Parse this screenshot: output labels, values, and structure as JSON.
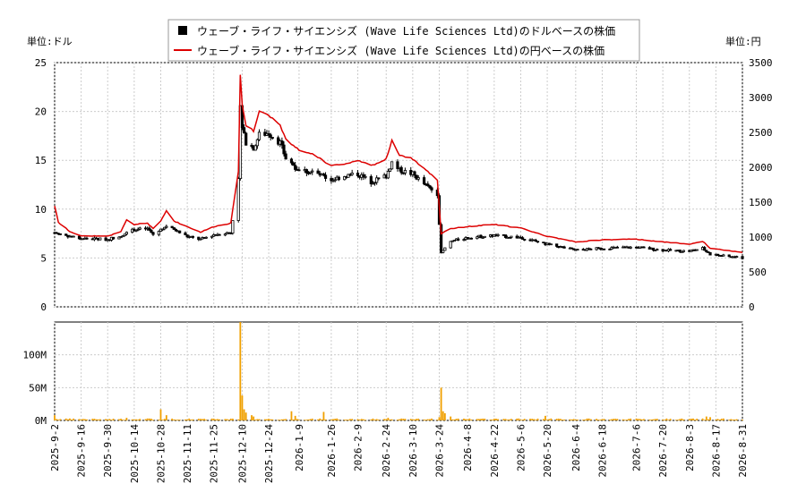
{
  "chart_data": {
    "type": "candlestick+line+bar",
    "legend": {
      "items": [
        {
          "label": "ウェーブ・ライフ・サイエンシズ (Wave Life Sciences Ltd)のドルベースの株価",
          "color": "#000000",
          "marker": "square"
        },
        {
          "label": "ウェーブ・ライフ・サイエンシズ (Wave Life Sciences Ltd)の円ベースの株価",
          "color": "#dd0000",
          "marker": "line"
        }
      ]
    },
    "left_unit": "単位:ドル",
    "right_unit": "単位:円",
    "price_axis_left": {
      "min": 0,
      "max": 25,
      "ticks": [
        0,
        5,
        10,
        15,
        20,
        25
      ]
    },
    "price_axis_right": {
      "min": 0,
      "max": 3500,
      "ticks": [
        0,
        500,
        1000,
        1500,
        2000,
        2500,
        3000,
        3500
      ]
    },
    "volume_axis": {
      "min": 0,
      "max": 150000000,
      "ticks": [
        {
          "value": 0,
          "label": "0M"
        },
        {
          "value": 50000000,
          "label": "50M"
        },
        {
          "value": 100000000,
          "label": "100M"
        }
      ]
    },
    "x_start": "2025-09-02",
    "x_end": "2026-08-31",
    "x_ticks": [
      "2025-9-2",
      "2025-9-16",
      "2025-9-30",
      "2025-10-14",
      "2025-10-28",
      "2025-11-11",
      "2025-11-25",
      "2025-12-10",
      "2025-12-24",
      "2026-1-9",
      "2026-1-26",
      "2026-2-9",
      "2026-2-24",
      "2026-3-10",
      "2026-3-24",
      "2026-4-8",
      "2026-4-22",
      "2026-5-6",
      "2026-5-20",
      "2026-6-4",
      "2026-6-18",
      "2026-7-6",
      "2026-7-20",
      "2026-8-3",
      "2026-8-17",
      "2026-8-31"
    ],
    "usd_anchors": [
      [
        "2025-09-02",
        7.6
      ],
      [
        "2025-09-08",
        7.3
      ],
      [
        "2025-09-16",
        7.0
      ],
      [
        "2025-09-30",
        6.9
      ],
      [
        "2025-10-07",
        7.3
      ],
      [
        "2025-10-14",
        7.9
      ],
      [
        "2025-10-21",
        8.0
      ],
      [
        "2025-10-24",
        7.4
      ],
      [
        "2025-10-28",
        7.9
      ],
      [
        "2025-10-31",
        8.3
      ],
      [
        "2025-11-04",
        7.9
      ],
      [
        "2025-11-11",
        7.2
      ],
      [
        "2025-11-18",
        6.9
      ],
      [
        "2025-11-25",
        7.4
      ],
      [
        "2025-12-04",
        7.6
      ],
      [
        "2025-12-08",
        13.0
      ],
      [
        "2025-12-09",
        20.5
      ],
      [
        "2025-12-10",
        18.5
      ],
      [
        "2025-12-12",
        16.8
      ],
      [
        "2025-12-16",
        16.3
      ],
      [
        "2025-12-19",
        17.6
      ],
      [
        "2025-12-24",
        17.8
      ],
      [
        "2025-12-30",
        16.8
      ],
      [
        "2026-01-02",
        15.2
      ],
      [
        "2026-01-09",
        14.0
      ],
      [
        "2026-01-16",
        13.8
      ],
      [
        "2026-01-26",
        13.0
      ],
      [
        "2026-02-02",
        13.4
      ],
      [
        "2026-02-09",
        13.6
      ],
      [
        "2026-02-16",
        12.8
      ],
      [
        "2026-02-24",
        13.4
      ],
      [
        "2026-02-27",
        14.8
      ],
      [
        "2026-03-03",
        14.0
      ],
      [
        "2026-03-10",
        13.6
      ],
      [
        "2026-03-17",
        12.4
      ],
      [
        "2026-03-23",
        11.6
      ],
      [
        "2026-03-25",
        5.6
      ],
      [
        "2026-03-30",
        6.7
      ],
      [
        "2026-04-08",
        7.1
      ],
      [
        "2026-04-22",
        7.3
      ],
      [
        "2026-05-06",
        7.1
      ],
      [
        "2026-05-20",
        6.4
      ],
      [
        "2026-06-04",
        5.8
      ],
      [
        "2026-06-18",
        6.0
      ],
      [
        "2026-07-06",
        6.1
      ],
      [
        "2026-07-20",
        5.8
      ],
      [
        "2026-08-03",
        5.7
      ],
      [
        "2026-08-10",
        6.0
      ],
      [
        "2026-08-14",
        5.3
      ],
      [
        "2026-08-17",
        5.3
      ],
      [
        "2026-08-31",
        5.0
      ]
    ],
    "jpy_anchors": [
      [
        "2025-09-02",
        1450
      ],
      [
        "2025-09-04",
        1210
      ],
      [
        "2025-09-10",
        1080
      ],
      [
        "2025-09-16",
        1020
      ],
      [
        "2025-09-30",
        1010
      ],
      [
        "2025-10-07",
        1080
      ],
      [
        "2025-10-10",
        1250
      ],
      [
        "2025-10-14",
        1180
      ],
      [
        "2025-10-21",
        1200
      ],
      [
        "2025-10-24",
        1120
      ],
      [
        "2025-10-28",
        1230
      ],
      [
        "2025-10-31",
        1380
      ],
      [
        "2025-11-04",
        1230
      ],
      [
        "2025-11-11",
        1150
      ],
      [
        "2025-11-18",
        1070
      ],
      [
        "2025-11-25",
        1150
      ],
      [
        "2025-12-04",
        1200
      ],
      [
        "2025-12-08",
        1950
      ],
      [
        "2025-12-09",
        3330
      ],
      [
        "2025-12-10",
        2900
      ],
      [
        "2025-12-12",
        2600
      ],
      [
        "2025-12-16",
        2520
      ],
      [
        "2025-12-19",
        2800
      ],
      [
        "2025-12-24",
        2750
      ],
      [
        "2025-12-30",
        2600
      ],
      [
        "2026-01-02",
        2400
      ],
      [
        "2026-01-09",
        2250
      ],
      [
        "2026-01-16",
        2200
      ],
      [
        "2026-01-26",
        2020
      ],
      [
        "2026-02-02",
        2050
      ],
      [
        "2026-02-09",
        2100
      ],
      [
        "2026-02-16",
        2020
      ],
      [
        "2026-02-24",
        2120
      ],
      [
        "2026-02-27",
        2380
      ],
      [
        "2026-03-03",
        2180
      ],
      [
        "2026-03-10",
        2120
      ],
      [
        "2026-03-17",
        1960
      ],
      [
        "2026-03-23",
        1820
      ],
      [
        "2026-03-25",
        1050
      ],
      [
        "2026-03-30",
        1120
      ],
      [
        "2026-04-08",
        1150
      ],
      [
        "2026-04-22",
        1180
      ],
      [
        "2026-05-06",
        1130
      ],
      [
        "2026-05-20",
        1010
      ],
      [
        "2026-06-04",
        930
      ],
      [
        "2026-06-18",
        960
      ],
      [
        "2026-07-06",
        970
      ],
      [
        "2026-07-20",
        930
      ],
      [
        "2026-08-03",
        900
      ],
      [
        "2026-08-10",
        940
      ],
      [
        "2026-08-14",
        840
      ],
      [
        "2026-08-17",
        830
      ],
      [
        "2026-08-31",
        780
      ]
    ],
    "volume_baseline": 2000000,
    "volume_spikes": [
      [
        "2025-09-02",
        8000000
      ],
      [
        "2025-10-10",
        4000000
      ],
      [
        "2025-10-28",
        17000000
      ],
      [
        "2025-10-31",
        8000000
      ],
      [
        "2025-12-09",
        150000000
      ],
      [
        "2025-12-10",
        38000000
      ],
      [
        "2025-12-11",
        17000000
      ],
      [
        "2025-12-12",
        12000000
      ],
      [
        "2025-12-15",
        8000000
      ],
      [
        "2025-12-16",
        6000000
      ],
      [
        "2026-01-05",
        14000000
      ],
      [
        "2026-01-07",
        7000000
      ],
      [
        "2026-01-22",
        13000000
      ],
      [
        "2026-02-25",
        4000000
      ],
      [
        "2026-03-24",
        5000000
      ],
      [
        "2026-03-25",
        50000000
      ],
      [
        "2026-03-26",
        14000000
      ],
      [
        "2026-03-27",
        11000000
      ],
      [
        "2026-03-30",
        6000000
      ],
      [
        "2026-05-19",
        7000000
      ],
      [
        "2026-08-12",
        6000000
      ],
      [
        "2026-08-14",
        5000000
      ]
    ]
  }
}
